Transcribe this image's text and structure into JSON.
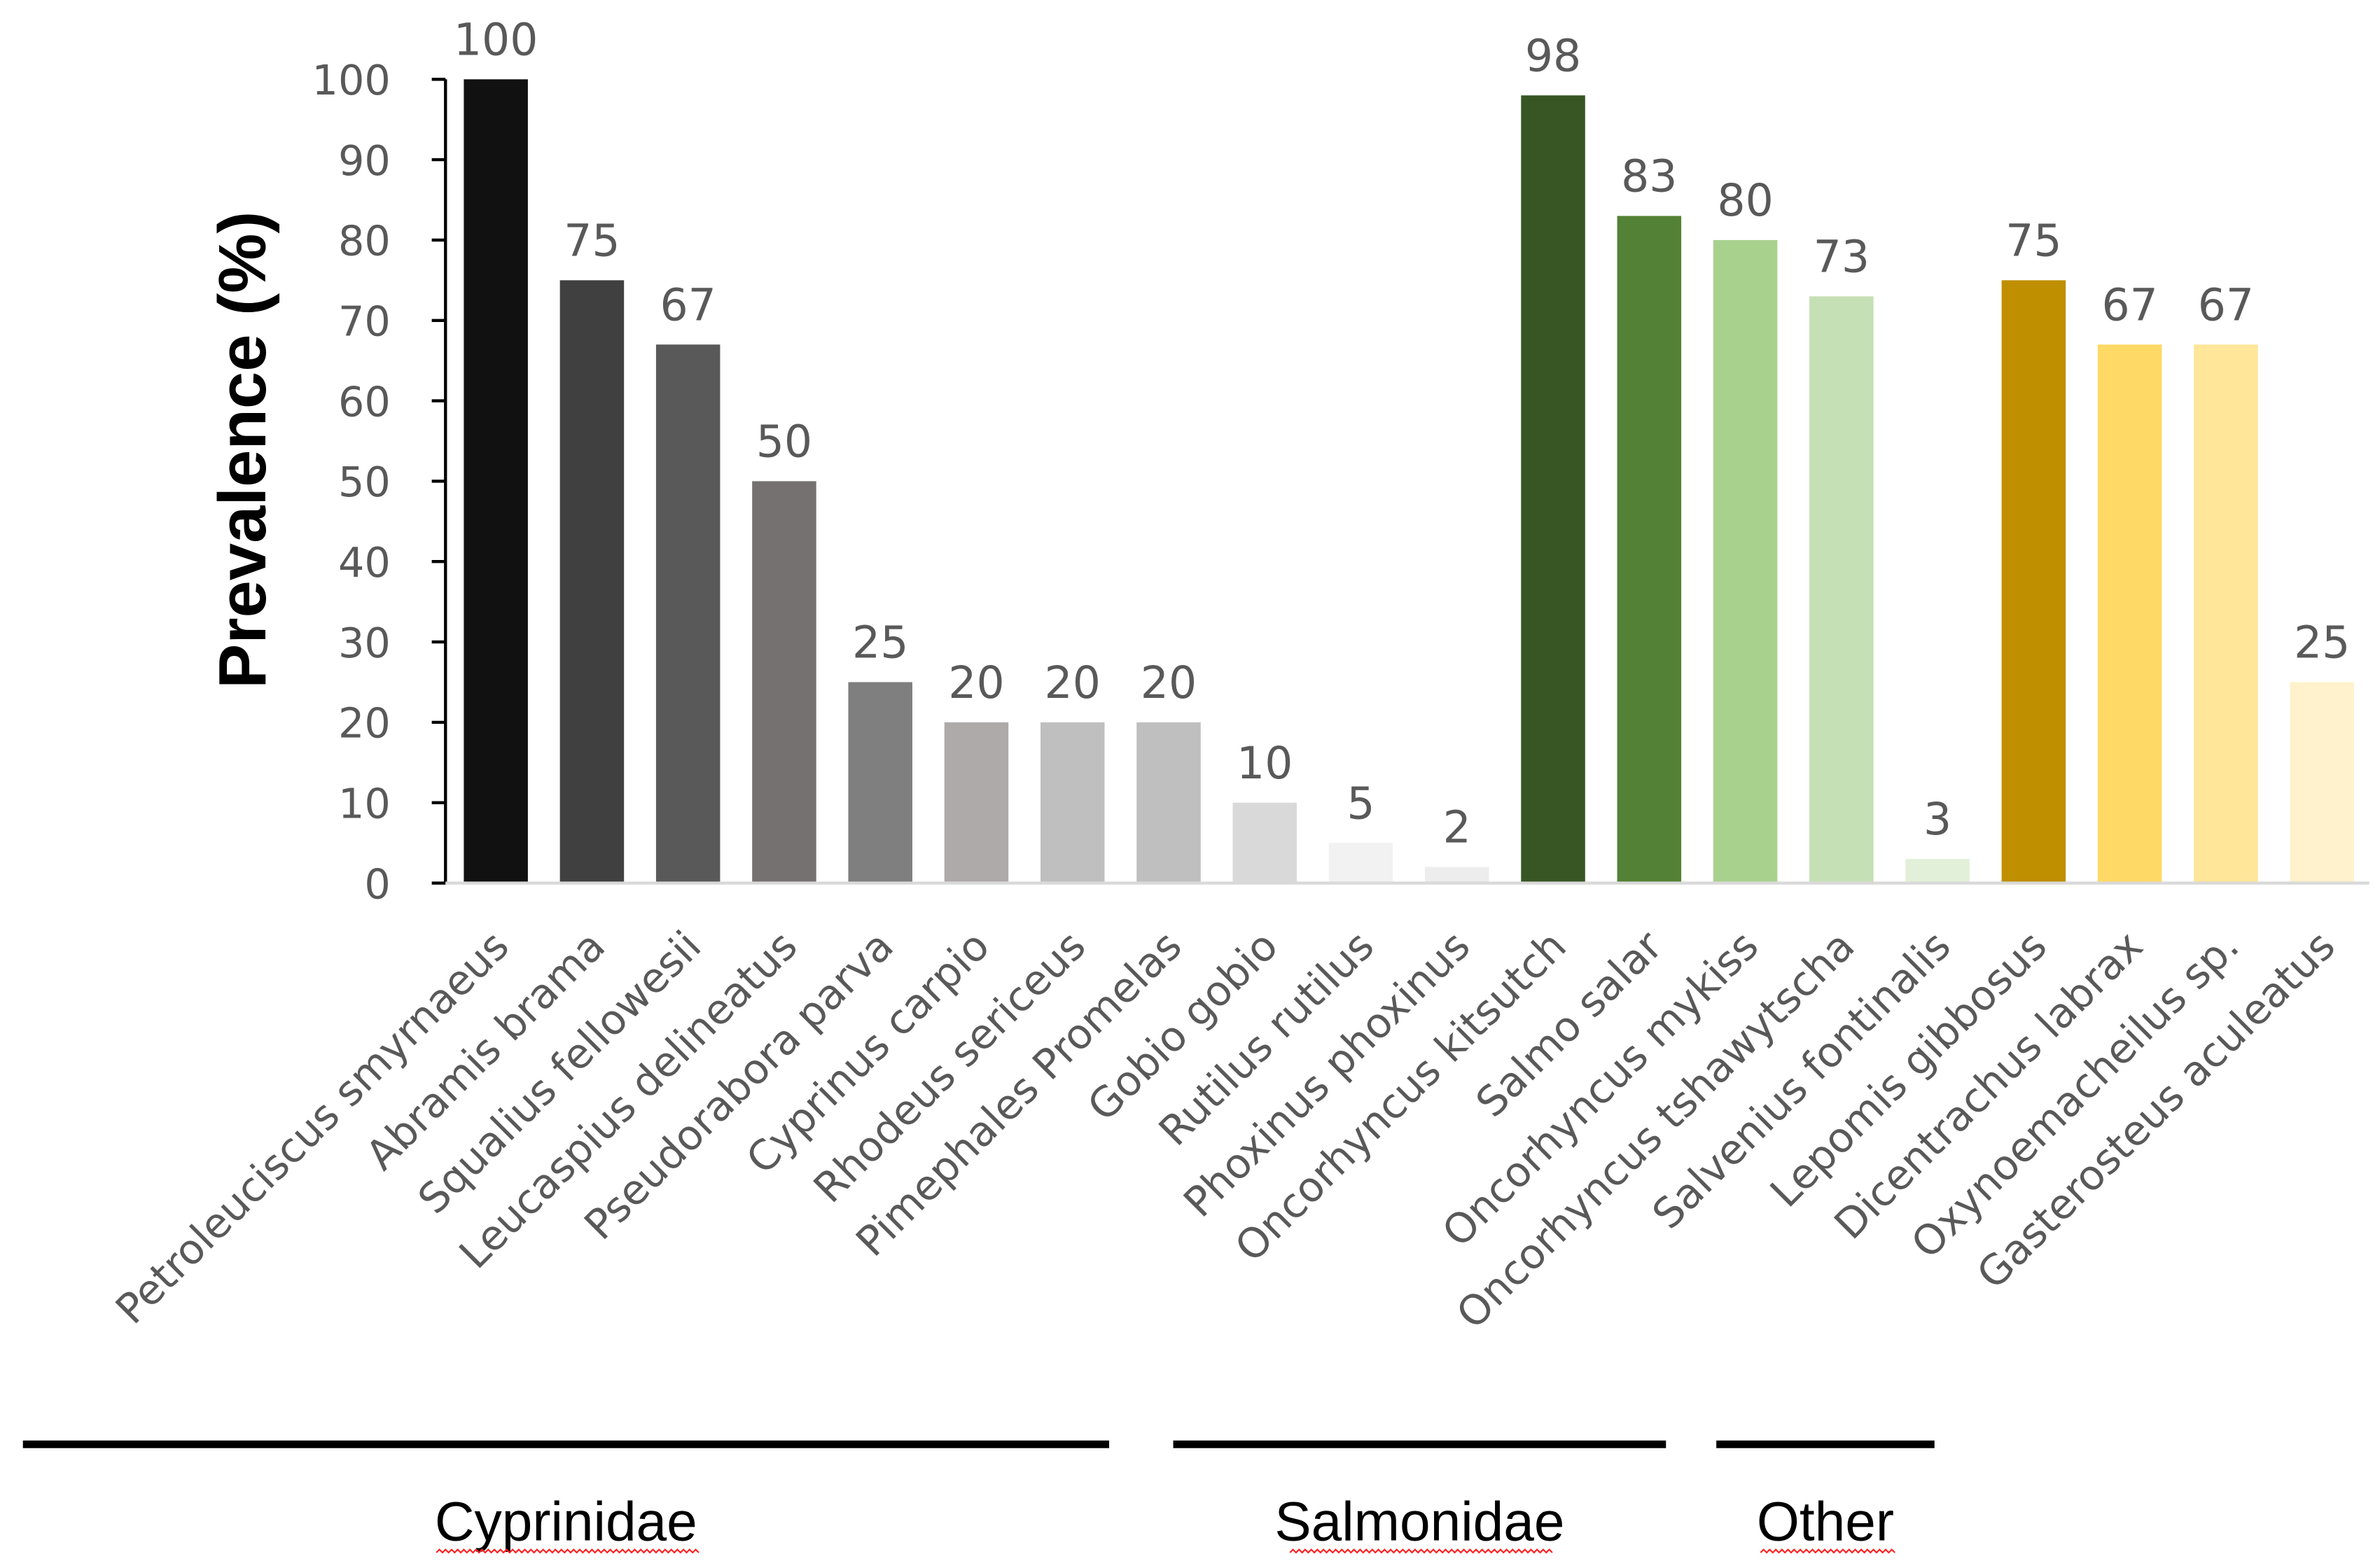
{
  "chart_data": {
    "type": "bar",
    "title": "",
    "xlabel": "",
    "ylabel": "Prevalence (%)",
    "ylim": [
      0,
      100
    ],
    "yticks": [
      0,
      10,
      20,
      30,
      40,
      50,
      60,
      70,
      80,
      90,
      100
    ],
    "grid": false,
    "categories": [
      "Petroleuciscus smyrnaeus",
      "Abramis brama",
      "Squalius fellowesii",
      "Leucaspius delineatus",
      "Pseudorabora parva",
      "Cyprinus carpio",
      "Rhodeus sericeus",
      "Pimephales Promelas",
      "Gobio gobio",
      "Rutilus rutilus",
      "Phoxinus phoxinus",
      "Oncorhyncus kitsutch",
      "Salmo salar",
      "Oncorhyncus mykiss",
      "Oncorhyncus tshawytscha",
      "Salvenius fontinalis",
      "Lepomis gibbosus",
      "Dicentrachus labrax",
      "Oxynoemacheilus sp.",
      "Gasterosteus aculeatus"
    ],
    "values": [
      100,
      75,
      67,
      50,
      25,
      20,
      20,
      20,
      10,
      5,
      2,
      98,
      83,
      80,
      73,
      3,
      75,
      67,
      67,
      25
    ],
    "colors": [
      "#111111",
      "#404040",
      "#595959",
      "#767171",
      "#7f7f7f",
      "#aeaaaa",
      "#bfbfbf",
      "#bfbfbf",
      "#d9d9d9",
      "#f2f2f2",
      "#ededed",
      "#375623",
      "#538135",
      "#a9d18e",
      "#c5e0b4",
      "#e2f0d9",
      "#bf8f00",
      "#ffd966",
      "#ffe699",
      "#fff2cc"
    ],
    "groups": [
      {
        "label": "Cyprinidae",
        "first": 0,
        "last": 10
      },
      {
        "label": "Salmonidae",
        "first": 11,
        "last": 15
      },
      {
        "label": "Other",
        "first": 16,
        "last": 19
      }
    ]
  }
}
